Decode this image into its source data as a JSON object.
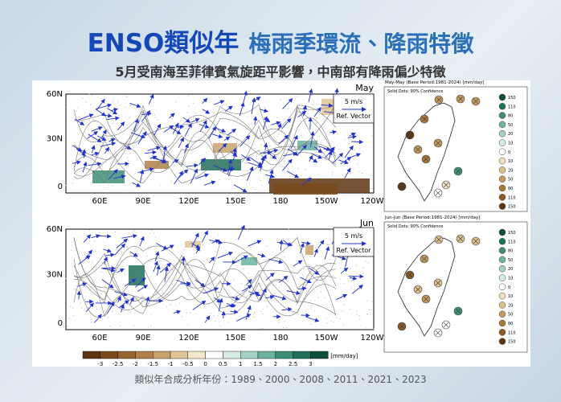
{
  "header": {
    "title_a": "ENSO類似年",
    "title_b": "梅雨季環流、降雨特徵",
    "subtitle": "5月受南海至菲律賓氣旋距平影響，中南部有降雨偏少特徵"
  },
  "maps": [
    {
      "month": "May",
      "lat_labels": [
        "60N",
        "30N",
        "0"
      ],
      "lon_labels": [
        "60E",
        "90E",
        "120E",
        "150E",
        "180",
        "150W",
        "120W"
      ],
      "ref_speed": "5 m/s",
      "ref_label": "Ref. Vector"
    },
    {
      "month": "Jun",
      "lat_labels": [
        "60N",
        "30N",
        "0"
      ],
      "lon_labels": [
        "60E",
        "90E",
        "120E",
        "150E",
        "180",
        "150W",
        "120W"
      ],
      "ref_speed": "5 m/s",
      "ref_label": "Ref. Vector"
    }
  ],
  "taiwan": [
    {
      "title": "May-May (Base Period:1981-2024) [mm/day]",
      "note": "Solid Dots: 90% Confidence"
    },
    {
      "title": "Jun-Jun (Base Period:1981-2024) [mm/day]",
      "note": "Solid Dots: 90% Confidence"
    }
  ],
  "taiwan_legend": {
    "labels": [
      "150",
      "110",
      "80",
      "50",
      "20",
      "10",
      "0",
      "10",
      "20",
      "50",
      "80",
      "110",
      "150"
    ],
    "colors": [
      "#0b4f3c",
      "#1f6f5a",
      "#3d8f78",
      "#6cb3a0",
      "#a3d3c6",
      "#d6ece6",
      "#ffffff",
      "#f1dfc1",
      "#dcbf8a",
      "#c49a5c",
      "#a8773a",
      "#8c5a23",
      "#5e3510"
    ]
  },
  "colorbar": {
    "labels": [
      "-3",
      "-2.5",
      "-2",
      "-1.5",
      "-1",
      "-0.5",
      "0",
      "0.5",
      "1",
      "1.5",
      "2",
      "2.5",
      "3"
    ],
    "unit": "[mm/day]",
    "colors": [
      "#5e3510",
      "#7a4a1c",
      "#96652f",
      "#b08148",
      "#c9a26c",
      "#e0c697",
      "#f3e6c9",
      "#ffffff",
      "#d6ece6",
      "#a3d3c6",
      "#6cb3a0",
      "#3d8f78",
      "#1f6f5a",
      "#0b4f3c"
    ]
  },
  "footer": "類似年合成分析年份：1989、2000、2008、2011、2021、2023"
}
